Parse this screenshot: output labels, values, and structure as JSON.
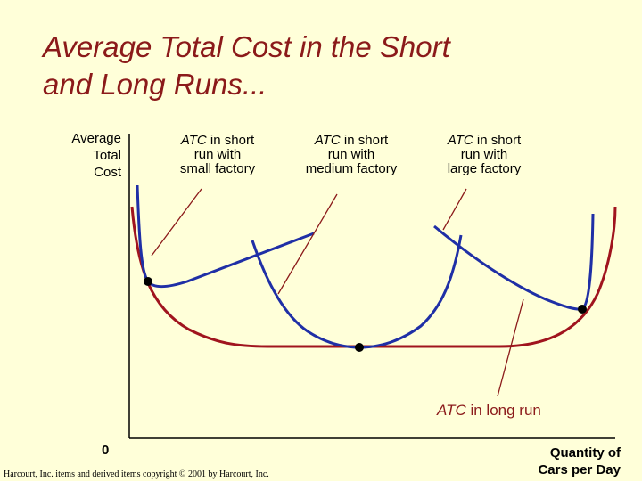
{
  "title_line1": "Average Total Cost in the Short",
  "title_line2": "and Long Runs...",
  "y_axis": {
    "line1": "Average",
    "line2": "Total",
    "line3": "Cost"
  },
  "x_axis": {
    "line1": "Quantity of",
    "line2": "Cars per Day"
  },
  "origin": "0",
  "callouts": {
    "small": {
      "atc": "ATC",
      "line1_rest": " in short",
      "line2": "run with",
      "line3": "small factory"
    },
    "medium": {
      "atc": "ATC",
      "line1_rest": " in short",
      "line2": "run with",
      "line3": "medium factory"
    },
    "large": {
      "atc": "ATC",
      "line1_rest": " in short",
      "line2": "run with",
      "line3": "large factory"
    }
  },
  "long_run": {
    "atc": "ATC",
    "rest": " in long run"
  },
  "copyright": "Harcourt, Inc. items and derived items copyright © 2001 by Harcourt, Inc.",
  "colors": {
    "title": "#8b1a1a",
    "long_run_curve": "#a0141e",
    "short_run_curves": "#1f2fa6",
    "background": "#ffffd9"
  }
}
